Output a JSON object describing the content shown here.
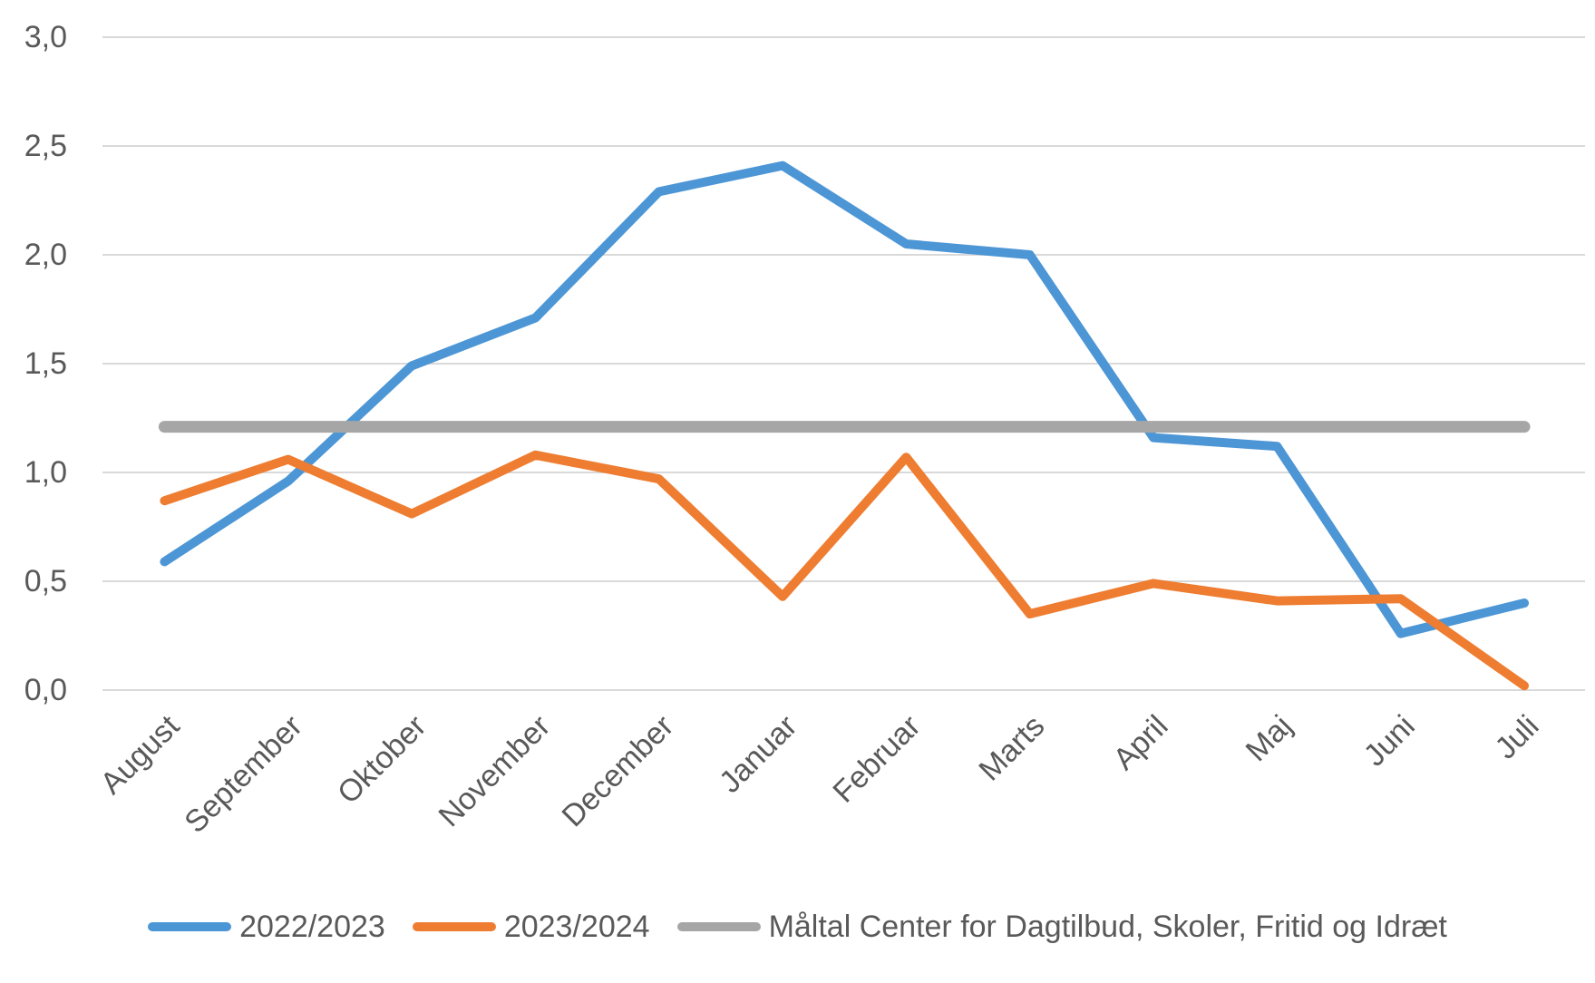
{
  "chart_data": {
    "type": "line",
    "title": "",
    "categories": [
      "August",
      "September",
      "Oktober",
      "November",
      "December",
      "Januar",
      "Februar",
      "Marts",
      "April",
      "Maj",
      "Juni",
      "Juli"
    ],
    "series": [
      {
        "name": "2022/2023",
        "color": "#4D96D5",
        "role": "data",
        "values": [
          0.59,
          0.96,
          1.49,
          1.71,
          2.29,
          2.41,
          2.05,
          2.0,
          1.16,
          1.12,
          0.26,
          0.4
        ]
      },
      {
        "name": "2023/2024",
        "color": "#EE7D31",
        "role": "data",
        "values": [
          0.87,
          1.06,
          0.81,
          1.08,
          0.97,
          0.43,
          1.07,
          0.35,
          0.49,
          0.41,
          0.42,
          0.02
        ]
      },
      {
        "name": "Måltal Center for Dagtilbud, Skoler, Fritid og Idræt",
        "color": "#A6A6A6",
        "role": "target-line",
        "values": [
          1.21,
          1.21,
          1.21,
          1.21,
          1.21,
          1.21,
          1.21,
          1.21,
          1.21,
          1.21,
          1.21,
          1.21
        ]
      }
    ],
    "xlabel": "",
    "ylabel": "",
    "ylim": [
      0.0,
      3.0
    ],
    "ytick_step": 0.5,
    "ytick_labels": [
      "0,0",
      "0,5",
      "1,0",
      "1,5",
      "2,0",
      "2,5",
      "3,0"
    ],
    "decimal_separator": ",",
    "grid": "horizontal",
    "gridline_color": "#D9D9D9",
    "text_color": "#595959",
    "background_color": "#FFFFFF",
    "legend_position": "bottom",
    "x_label_rotation_deg": -45
  }
}
